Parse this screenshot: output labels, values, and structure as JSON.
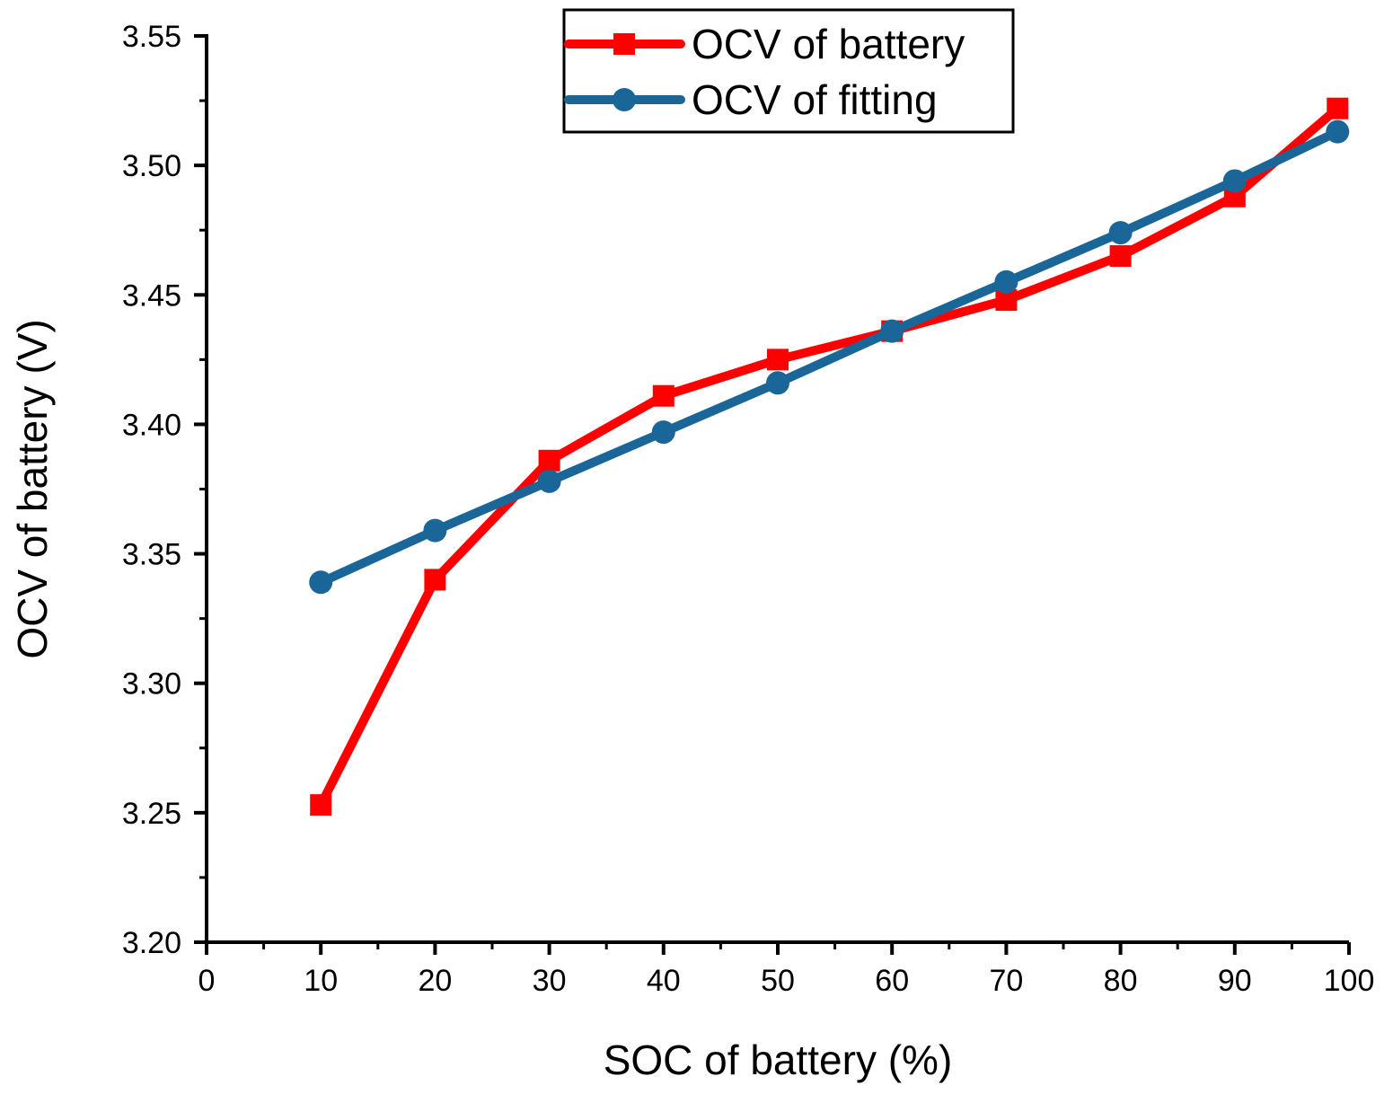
{
  "chart_data": {
    "type": "line",
    "title": "",
    "xlabel": "SOC of battery (%)",
    "ylabel": "OCV of battery (V)",
    "xlim": [
      0,
      100
    ],
    "ylim": [
      3.2,
      3.55
    ],
    "xticks": [
      "0",
      "10",
      "20",
      "30",
      "40",
      "50",
      "60",
      "70",
      "80",
      "90",
      "100"
    ],
    "xtick_values": [
      0,
      10,
      20,
      30,
      40,
      50,
      60,
      70,
      80,
      90,
      100
    ],
    "yticks": [
      "3.20",
      "3.25",
      "3.30",
      "3.35",
      "3.40",
      "3.45",
      "3.50",
      "3.55"
    ],
    "ytick_values": [
      3.2,
      3.25,
      3.3,
      3.35,
      3.4,
      3.45,
      3.5,
      3.55
    ],
    "grid": false,
    "legend_position": "top-center",
    "series": [
      {
        "name": "OCV of battery",
        "color": "#ff0000",
        "marker": "square",
        "x": [
          10,
          20,
          30,
          40,
          50,
          60,
          70,
          80,
          90,
          99
        ],
        "y": [
          3.253,
          3.34,
          3.386,
          3.411,
          3.425,
          3.436,
          3.448,
          3.465,
          3.488,
          3.522
        ]
      },
      {
        "name": "OCV of fitting",
        "color": "#1a6699",
        "marker": "circle",
        "x": [
          10,
          20,
          30,
          40,
          50,
          60,
          70,
          80,
          90,
          99
        ],
        "y": [
          3.339,
          3.359,
          3.378,
          3.397,
          3.416,
          3.436,
          3.455,
          3.474,
          3.494,
          3.513
        ]
      }
    ]
  }
}
